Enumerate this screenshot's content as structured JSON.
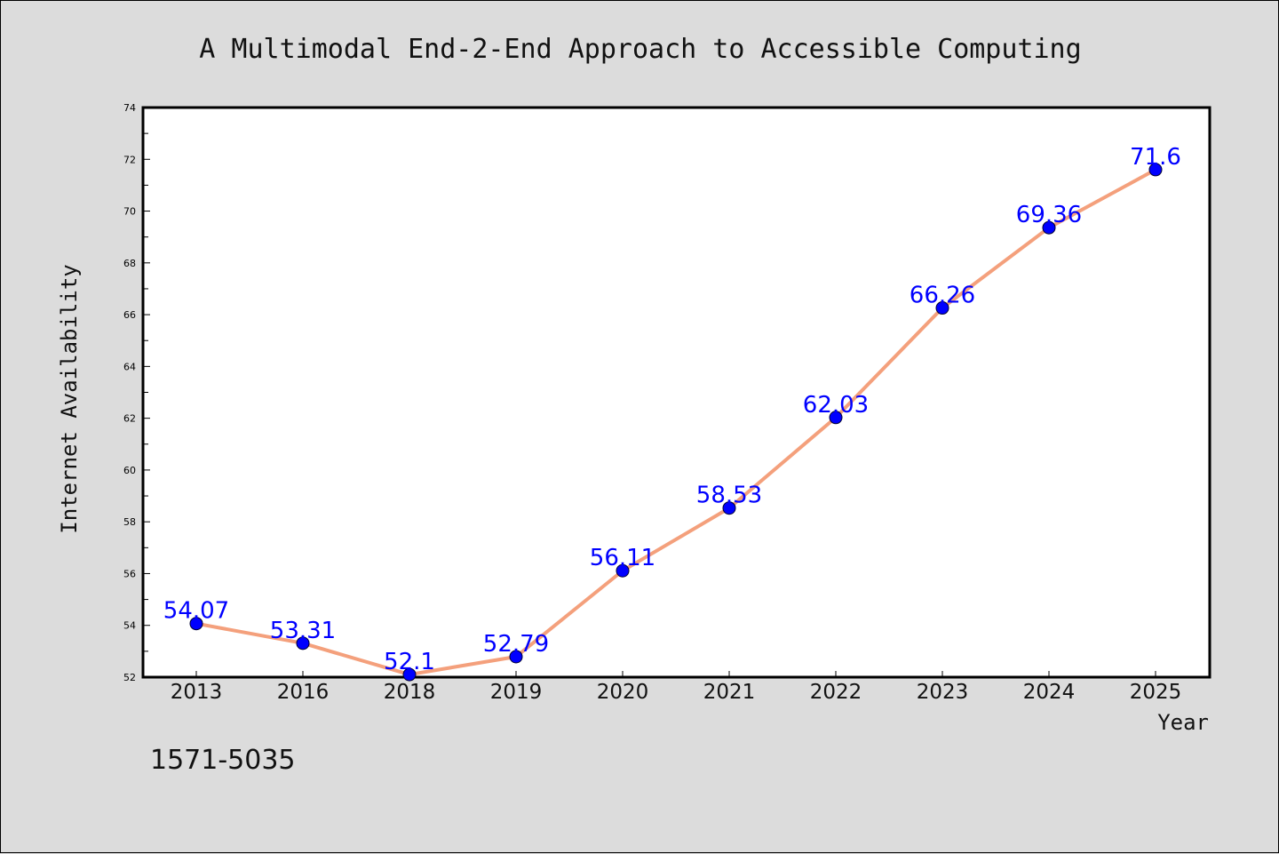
{
  "colors": {
    "background": "#dcdcdc",
    "plot_background": "#ffffff",
    "line": "#f4a07c",
    "marker": "#0000ff",
    "data_label": "#0000ff"
  },
  "footer_text": "1571-5035",
  "chart_data": {
    "type": "line",
    "title": "A Multimodal End-2-End Approach to Accessible Computing",
    "xlabel": "Year",
    "ylabel": "Internet Availability",
    "categories": [
      "2013",
      "2016",
      "2018",
      "2019",
      "2020",
      "2021",
      "2022",
      "2023",
      "2024",
      "2025"
    ],
    "values": [
      54.07,
      53.31,
      52.1,
      52.79,
      56.11,
      58.53,
      62.03,
      66.26,
      69.36,
      71.6
    ],
    "data_labels": [
      "54.07",
      "53.31",
      "52.1",
      "52.79",
      "56.11",
      "58.53",
      "62.03",
      "66.26",
      "69.36",
      "71.6"
    ],
    "ylim": [
      52,
      74
    ],
    "yticks": [
      52,
      54,
      56,
      58,
      60,
      62,
      64,
      66,
      68,
      70,
      72,
      74
    ],
    "grid": false,
    "legend": "none"
  }
}
